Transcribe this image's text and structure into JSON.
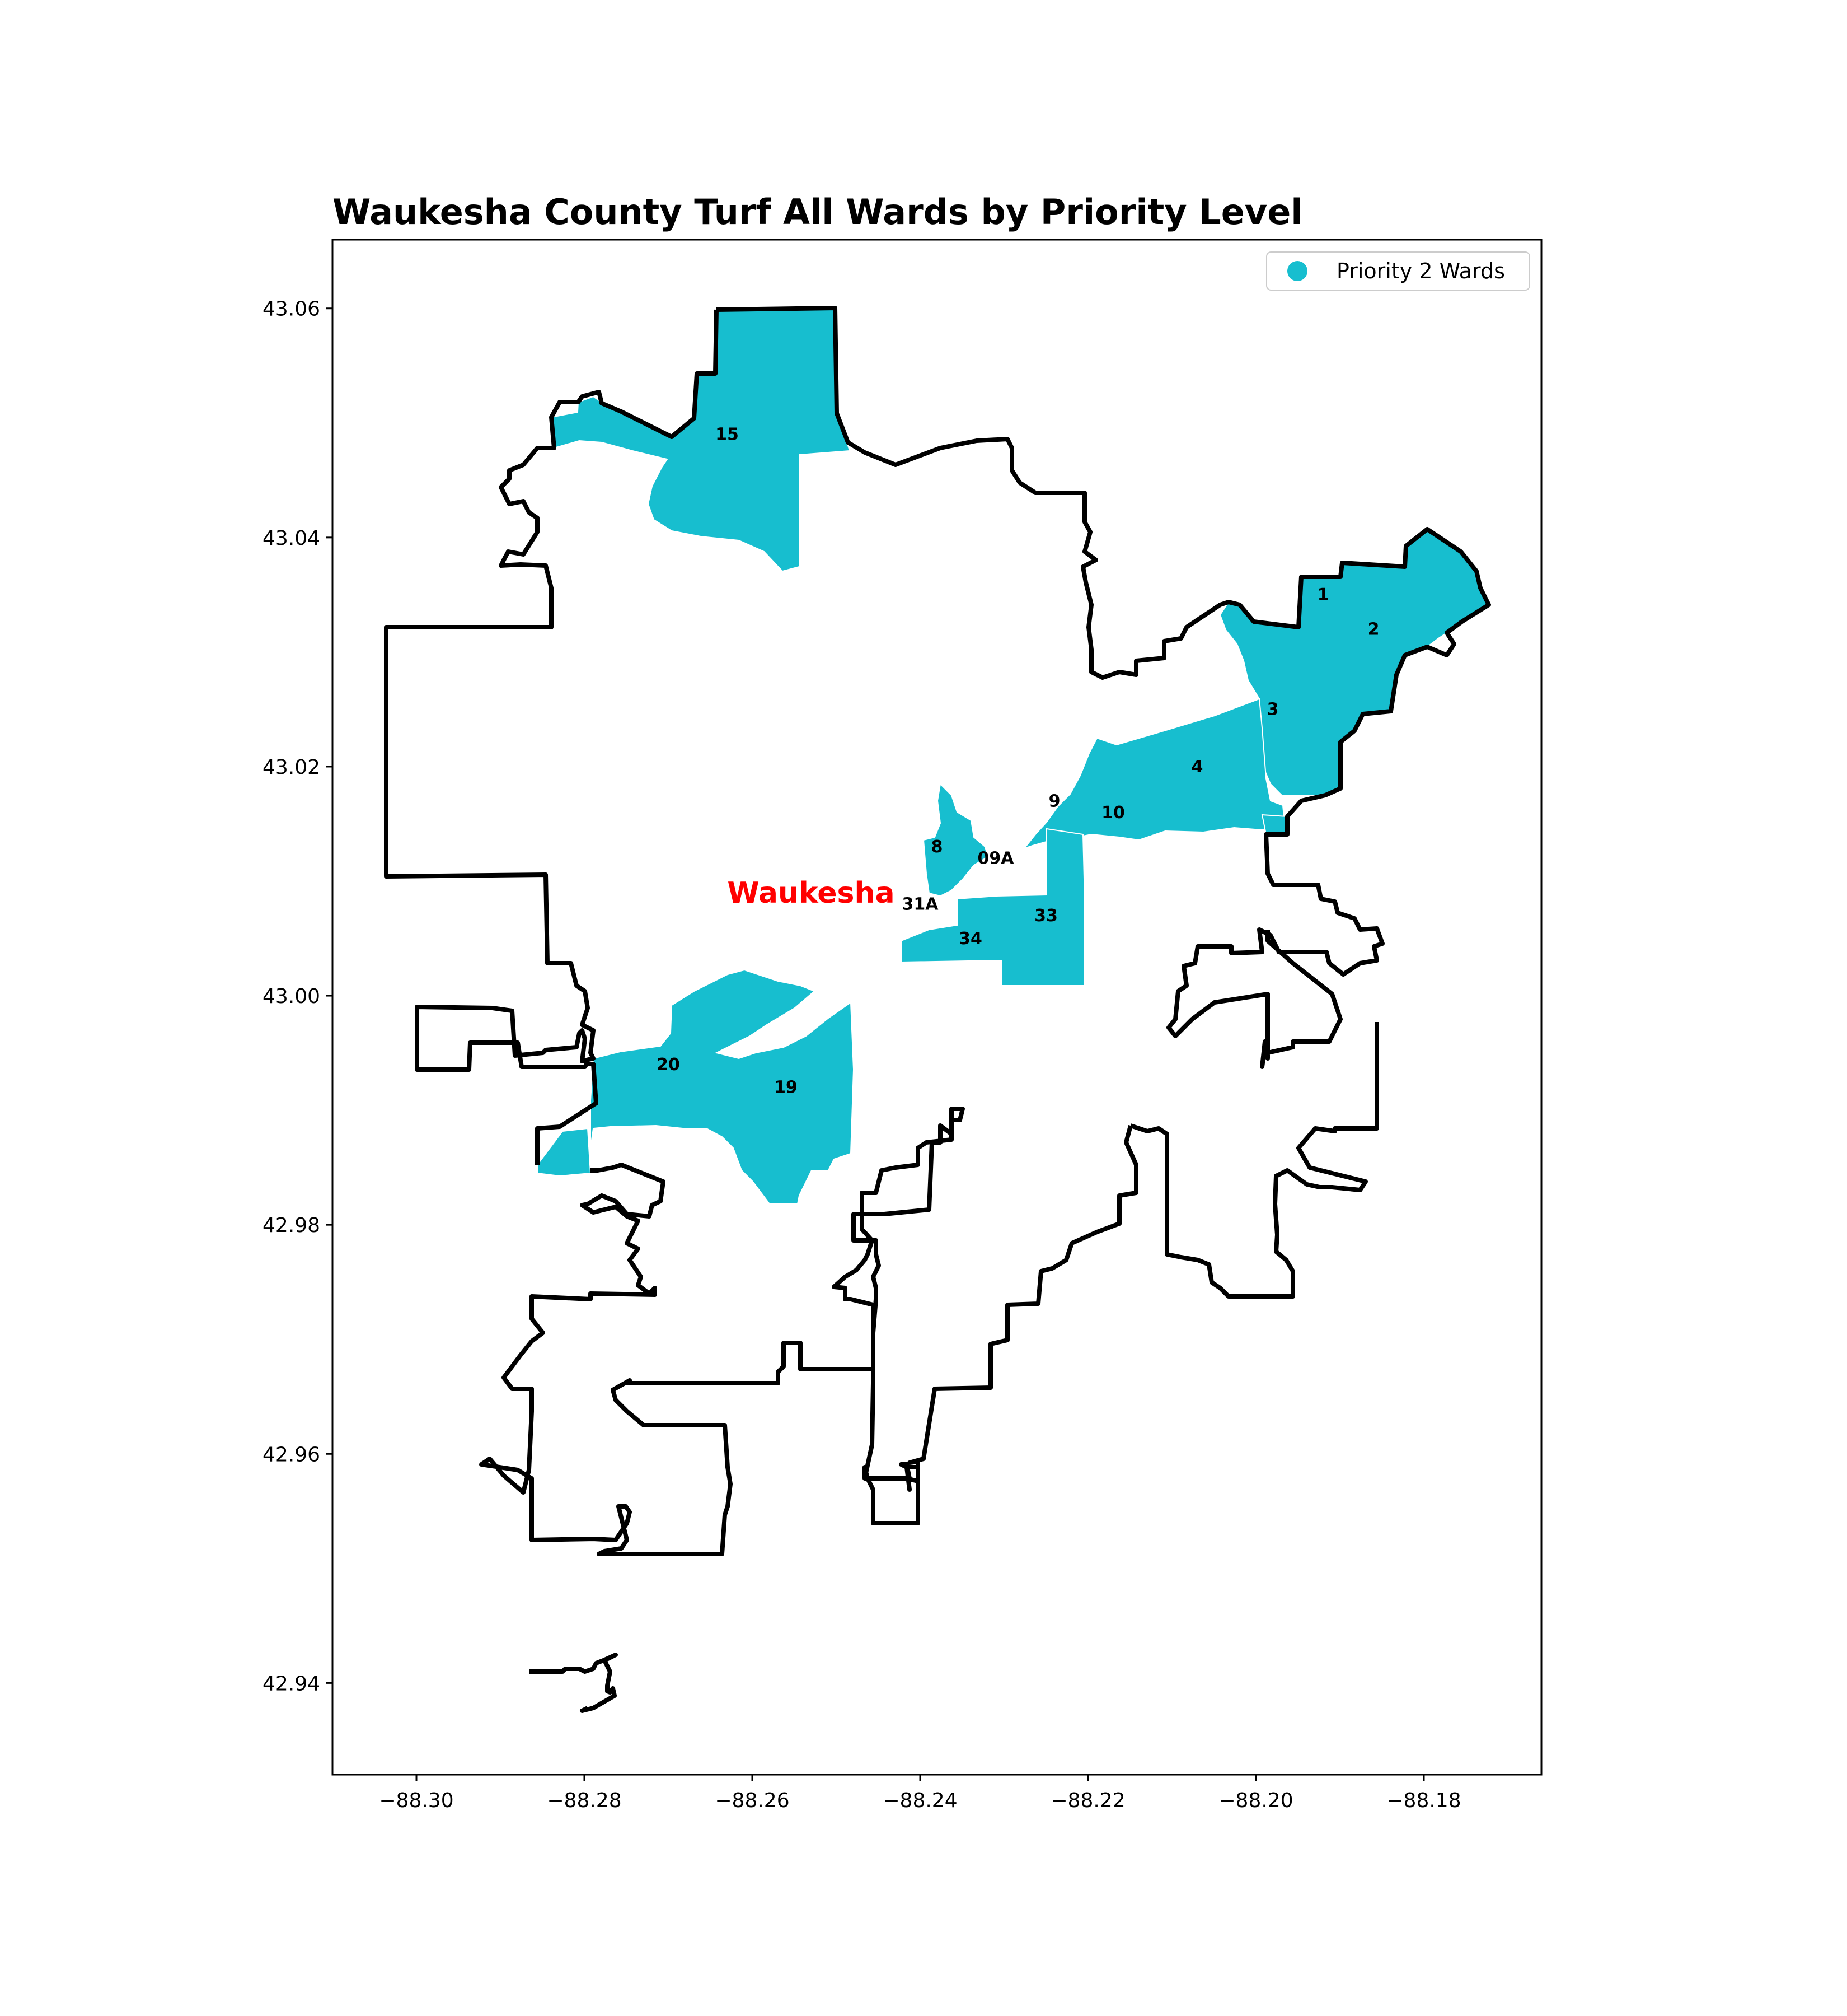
{
  "title": "Waukesha County Turf All Wards by Priority Level",
  "city_label": "Waukesha",
  "legend": {
    "items": [
      {
        "label": "Priority 2 Wards",
        "color": "#17becf"
      }
    ]
  },
  "colors": {
    "priority_2": "#17becf",
    "boundary": "#000000",
    "city_label": "#ff0000"
  },
  "axes": {
    "x_ticks": [
      "−88.30",
      "−88.28",
      "−88.26",
      "−88.24",
      "−88.22",
      "−88.20",
      "−88.18"
    ],
    "y_ticks": [
      "43.06",
      "43.04",
      "43.02",
      "43.00",
      "42.98",
      "42.96",
      "42.94"
    ]
  },
  "chart_data": {
    "type": "map",
    "title": "Waukesha County Turf All Wards by Priority Level",
    "xlim": [
      -88.31,
      -88.166
    ],
    "ylim": [
      42.932,
      43.066
    ],
    "x_ticks": [
      -88.3,
      -88.28,
      -88.26,
      -88.24,
      -88.22,
      -88.2,
      -88.18
    ],
    "y_ticks": [
      43.06,
      43.04,
      43.02,
      43.0,
      42.98,
      42.96,
      42.94
    ],
    "grid": false,
    "legend_position": "top-right",
    "wards": [
      {
        "label": "1",
        "priority": 2,
        "lon": -88.192,
        "lat": 43.035
      },
      {
        "label": "2",
        "priority": 2,
        "lon": -88.186,
        "lat": 43.032
      },
      {
        "label": "3",
        "priority": 2,
        "lon": -88.198,
        "lat": 43.025
      },
      {
        "label": "4",
        "priority": 2,
        "lon": -88.207,
        "lat": 43.02
      },
      {
        "label": "8",
        "priority": 2,
        "lon": -88.238,
        "lat": 43.013
      },
      {
        "label": "9",
        "priority": 2,
        "lon": -88.224,
        "lat": 43.017
      },
      {
        "label": "10",
        "priority": 2,
        "lon": -88.217,
        "lat": 43.016
      },
      {
        "label": "09A",
        "priority": 2,
        "lon": -88.231,
        "lat": 43.012
      },
      {
        "label": "15",
        "priority": 2,
        "lon": -88.263,
        "lat": 43.049
      },
      {
        "label": "19",
        "priority": 2,
        "lon": -88.256,
        "lat": 42.992
      },
      {
        "label": "20",
        "priority": 2,
        "lon": -88.27,
        "lat": 42.994
      },
      {
        "label": "33",
        "priority": 2,
        "lon": -88.225,
        "lat": 43.007
      },
      {
        "label": "34",
        "priority": 2,
        "lon": -88.234,
        "lat": 43.005
      },
      {
        "label": "31A",
        "priority": 2,
        "lon": -88.24,
        "lat": 43.008
      }
    ],
    "city": {
      "name": "Waukesha",
      "lon": -88.253,
      "lat": 43.009
    }
  }
}
